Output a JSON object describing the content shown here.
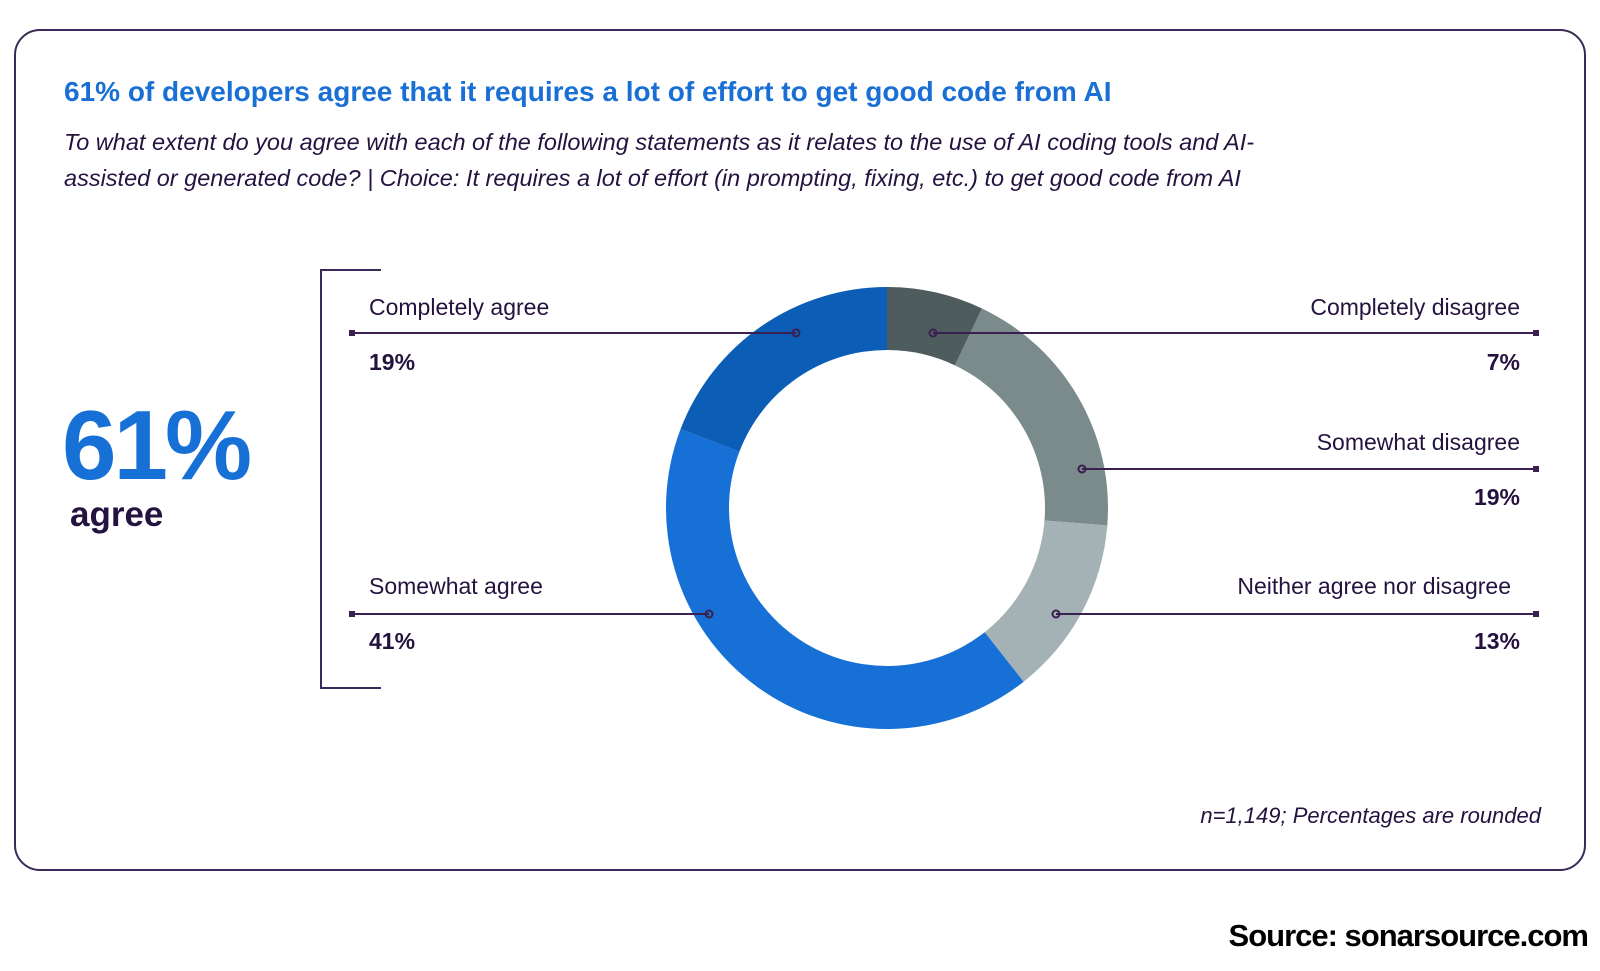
{
  "title": "61% of developers agree that it requires a lot of effort to get good code from AI",
  "subtitle_line1": "To what extent do you agree with each of the following statements as it relates to the use of AI coding tools and AI-",
  "subtitle_line2": "assisted or generated code? | Choice: It requires a lot of effort (in prompting, fixing, etc.) to get good code from AI",
  "highlight": {
    "value": "61%",
    "label": "agree"
  },
  "footnote": "n=1,149; Percentages are rounded",
  "source": "Source: sonarsource.com",
  "chart_data": {
    "type": "pie",
    "variant": "donut",
    "title": "61% of developers agree that it requires a lot of effort to get good code from AI",
    "start": "top, clockwise",
    "slices": [
      {
        "label": "Completely disagree",
        "value": 7,
        "display": "7%",
        "color": "#4f5c5e",
        "side": "right"
      },
      {
        "label": "Somewhat disagree",
        "value": 19,
        "display": "19%",
        "color": "#7b8b8c",
        "side": "right"
      },
      {
        "label": "Neither agree nor disagree",
        "value": 13,
        "display": "13%",
        "color": "#a5b2b5",
        "side": "right"
      },
      {
        "label": "Somewhat agree",
        "value": 41,
        "display": "41%",
        "color": "#1670d6",
        "side": "left"
      },
      {
        "label": "Completely agree",
        "value": 19,
        "display": "19%",
        "color": "#0c5db6",
        "side": "left"
      }
    ]
  }
}
